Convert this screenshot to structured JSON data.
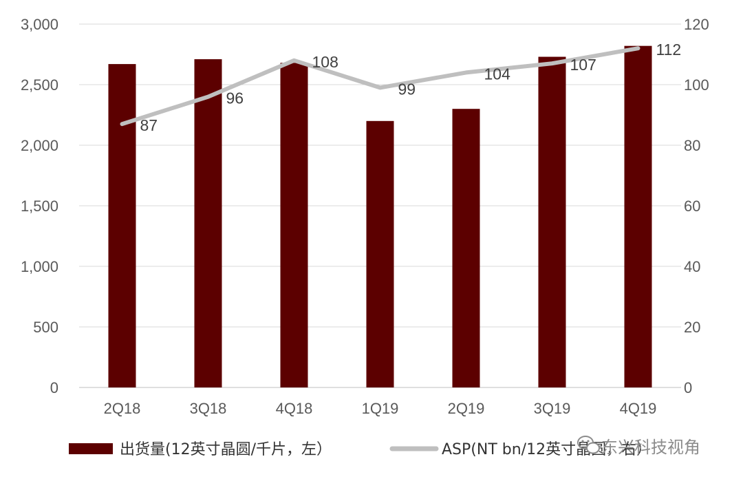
{
  "chart_data": {
    "type": "bar",
    "categories": [
      "2Q18",
      "3Q18",
      "4Q18",
      "1Q19",
      "2Q19",
      "3Q19",
      "4Q19"
    ],
    "series": [
      {
        "name": "出货量(12英寸晶圆/千片，左）",
        "type": "bar",
        "axis": "left",
        "color": "#5c0000",
        "values": [
          2670,
          2710,
          2680,
          2200,
          2300,
          2730,
          2820
        ]
      },
      {
        "name": "ASP(NT bn/12英寸晶圆，右）",
        "type": "line",
        "axis": "right",
        "color": "#bfbfbf",
        "values": [
          87,
          96,
          108,
          99,
          104,
          107,
          112
        ],
        "data_labels": [
          "87",
          "96",
          "108",
          "99",
          "104",
          "107",
          "112"
        ]
      }
    ],
    "y_left": {
      "min": 0,
      "max": 3000,
      "step": 500,
      "tick_labels": [
        "0",
        "500",
        "1,000",
        "1,500",
        "2,000",
        "2,500",
        "3,000"
      ]
    },
    "y_right": {
      "min": 0,
      "max": 120,
      "step": 20,
      "tick_labels": [
        "0",
        "20",
        "40",
        "60",
        "80",
        "100",
        "120"
      ]
    },
    "title": "",
    "xlabel": "",
    "ylabel": "",
    "grid": true,
    "legend_position": "bottom"
  },
  "watermark": {
    "text": "东兴科技视角",
    "icon": "wechat-icon"
  }
}
